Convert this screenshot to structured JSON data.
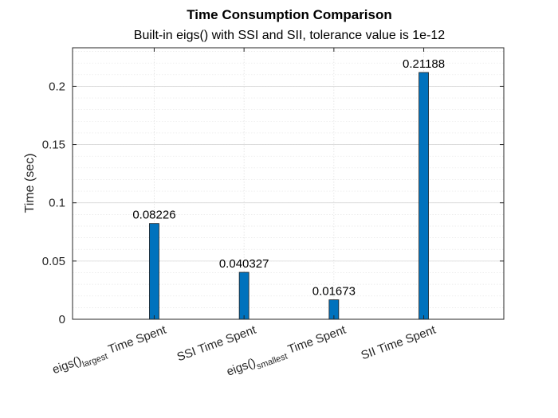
{
  "chart_data": {
    "type": "bar",
    "title": "Time Consumption Comparison",
    "subtitle": "Built-in eigs() with SSI and SII, tolerance value is 1e-12",
    "xlabel": "",
    "ylabel": "Time (sec)",
    "categories": [
      {
        "main": "eigs()",
        "sub": "largest",
        "suffix": " Time Spent"
      },
      {
        "main": "SSI Time Spent",
        "sub": "",
        "suffix": ""
      },
      {
        "main": "eigs()",
        "sub": "smallest",
        "suffix": " Time Spent"
      },
      {
        "main": "SII Time Spent",
        "sub": "",
        "suffix": ""
      }
    ],
    "values": [
      0.08226,
      0.040327,
      0.01673,
      0.21188
    ],
    "value_labels": [
      "0.08226",
      "0.040327",
      "0.01673",
      "0.21188"
    ],
    "ylim": [
      0,
      0.2331
    ],
    "yticks": [
      0,
      0.05,
      0.1,
      0.15,
      0.2
    ],
    "ytick_labels": [
      "0",
      "0.05",
      "0.1",
      "0.15",
      "0.2"
    ],
    "grid": true,
    "minor_grid": true,
    "bar_color": "#0072BD"
  }
}
